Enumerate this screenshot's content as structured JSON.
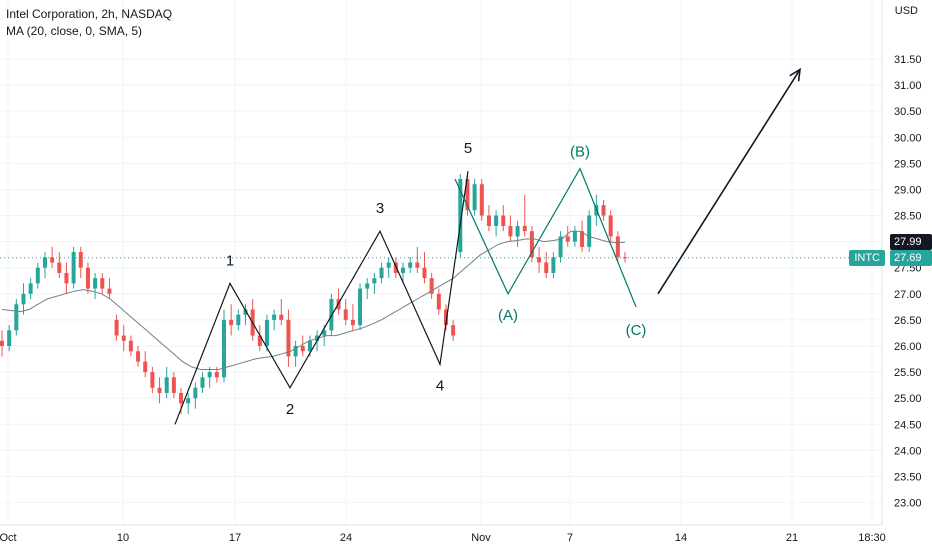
{
  "legend": {
    "title": "Intel Corporation, 2h, NASDAQ",
    "indicator": "MA (20, close, 0, SMA, 5)"
  },
  "axis": {
    "currency": "USD",
    "y_ticks": [
      "31.50",
      "31.00",
      "30.50",
      "30.00",
      "29.50",
      "29.00",
      "28.50",
      "28.00",
      "27.50",
      "27.00",
      "26.50",
      "26.00",
      "25.50",
      "25.00",
      "24.50",
      "24.00",
      "23.50",
      "23.00"
    ],
    "x_ticks": [
      "Oct",
      "10",
      "17",
      "24",
      "Nov",
      "7",
      "14",
      "21",
      "18:30"
    ]
  },
  "tags": {
    "symbol": "INTC",
    "last_price": "27.69",
    "ma_value": "27.99"
  },
  "colors": {
    "up": "#26a69a",
    "down": "#ef5350",
    "ma": "#787b86",
    "wave": "#131722",
    "corrective": "#00796b",
    "last_price_line": "#26a69a"
  },
  "chart_data": {
    "type": "candlestick",
    "title": "Intel Corporation, 2h, NASDAQ",
    "ylim": [
      22.8,
      32.4
    ],
    "x_labels": [
      "Oct",
      "10",
      "17",
      "24",
      "Nov",
      "7",
      "14",
      "21",
      "18:30"
    ],
    "ohlc": [
      [
        26.1,
        26.3,
        25.8,
        26.0
      ],
      [
        26.0,
        26.4,
        25.9,
        26.3
      ],
      [
        26.3,
        26.9,
        26.2,
        26.8
      ],
      [
        26.8,
        27.2,
        26.6,
        27.0
      ],
      [
        27.0,
        27.3,
        26.9,
        27.2
      ],
      [
        27.2,
        27.6,
        27.1,
        27.5
      ],
      [
        27.5,
        27.8,
        27.3,
        27.7
      ],
      [
        27.7,
        27.9,
        27.5,
        27.6
      ],
      [
        27.6,
        27.8,
        27.3,
        27.4
      ],
      [
        27.4,
        27.6,
        27.0,
        27.2
      ],
      [
        27.2,
        27.9,
        27.1,
        27.8
      ],
      [
        27.8,
        27.9,
        27.3,
        27.5
      ],
      [
        27.5,
        27.6,
        27.0,
        27.1
      ],
      [
        27.1,
        27.4,
        26.9,
        27.3
      ],
      [
        27.3,
        27.4,
        27.0,
        27.1
      ],
      [
        27.1,
        27.3,
        26.9,
        27.0
      ],
      [
        26.5,
        26.6,
        26.1,
        26.2
      ],
      [
        26.2,
        26.4,
        25.9,
        26.1
      ],
      [
        26.1,
        26.2,
        25.8,
        25.9
      ],
      [
        25.9,
        26.0,
        25.6,
        25.7
      ],
      [
        25.7,
        25.9,
        25.4,
        25.5
      ],
      [
        25.5,
        25.6,
        25.1,
        25.2
      ],
      [
        25.2,
        25.4,
        24.9,
        25.1
      ],
      [
        25.1,
        25.6,
        25.0,
        25.4
      ],
      [
        25.4,
        25.5,
        25.0,
        25.1
      ],
      [
        25.1,
        25.2,
        24.7,
        24.9
      ],
      [
        24.9,
        25.1,
        24.7,
        25.0
      ],
      [
        25.0,
        25.3,
        24.8,
        25.2
      ],
      [
        25.2,
        25.5,
        25.1,
        25.4
      ],
      [
        25.4,
        25.6,
        25.2,
        25.5
      ],
      [
        25.5,
        25.6,
        25.3,
        25.4
      ],
      [
        25.4,
        26.7,
        25.3,
        26.5
      ],
      [
        26.5,
        26.8,
        26.2,
        26.4
      ],
      [
        26.4,
        26.7,
        26.3,
        26.6
      ],
      [
        26.6,
        26.8,
        26.4,
        26.7
      ],
      [
        26.7,
        26.9,
        26.1,
        26.2
      ],
      [
        26.2,
        26.4,
        25.9,
        26.0
      ],
      [
        26.0,
        26.6,
        25.9,
        26.5
      ],
      [
        26.5,
        26.7,
        26.3,
        26.6
      ],
      [
        26.6,
        26.9,
        26.4,
        26.5
      ],
      [
        26.5,
        26.7,
        25.6,
        25.8
      ],
      [
        25.8,
        26.1,
        25.6,
        26.0
      ],
      [
        26.0,
        26.2,
        25.8,
        25.9
      ],
      [
        25.9,
        26.2,
        25.8,
        26.1
      ],
      [
        26.1,
        26.3,
        25.9,
        26.2
      ],
      [
        26.2,
        26.4,
        26.0,
        26.3
      ],
      [
        26.3,
        27.0,
        26.2,
        26.9
      ],
      [
        26.9,
        27.1,
        26.6,
        26.7
      ],
      [
        26.7,
        26.9,
        26.4,
        26.5
      ],
      [
        26.5,
        26.8,
        26.3,
        26.4
      ],
      [
        26.4,
        27.2,
        26.3,
        27.1
      ],
      [
        27.1,
        27.3,
        26.9,
        27.2
      ],
      [
        27.2,
        27.4,
        27.0,
        27.3
      ],
      [
        27.3,
        27.6,
        27.2,
        27.5
      ],
      [
        27.5,
        27.7,
        27.3,
        27.6
      ],
      [
        27.6,
        27.7,
        27.3,
        27.4
      ],
      [
        27.4,
        27.6,
        27.2,
        27.5
      ],
      [
        27.5,
        27.7,
        27.4,
        27.6
      ],
      [
        27.6,
        27.9,
        27.4,
        27.5
      ],
      [
        27.5,
        27.8,
        27.2,
        27.3
      ],
      [
        27.3,
        27.4,
        26.9,
        27.0
      ],
      [
        27.0,
        27.1,
        26.6,
        26.7
      ],
      [
        26.7,
        26.8,
        26.3,
        26.4
      ],
      [
        26.4,
        26.5,
        26.1,
        26.2
      ],
      [
        27.8,
        29.3,
        27.7,
        29.2
      ],
      [
        29.2,
        29.3,
        28.5,
        28.6
      ],
      [
        28.6,
        29.2,
        28.5,
        29.1
      ],
      [
        29.1,
        29.2,
        28.4,
        28.5
      ],
      [
        28.5,
        28.7,
        28.2,
        28.3
      ],
      [
        28.3,
        28.6,
        28.1,
        28.5
      ],
      [
        28.5,
        28.7,
        28.2,
        28.3
      ],
      [
        28.3,
        28.5,
        28.0,
        28.1
      ],
      [
        28.1,
        28.4,
        27.9,
        28.3
      ],
      [
        28.3,
        28.9,
        28.1,
        28.2
      ],
      [
        28.2,
        28.3,
        27.6,
        27.7
      ],
      [
        27.7,
        27.9,
        27.4,
        27.6
      ],
      [
        27.6,
        27.8,
        27.3,
        27.4
      ],
      [
        27.4,
        27.8,
        27.3,
        27.7
      ],
      [
        27.7,
        28.2,
        27.6,
        28.1
      ],
      [
        28.1,
        28.3,
        27.9,
        28.0
      ],
      [
        28.0,
        28.3,
        27.9,
        28.2
      ],
      [
        28.2,
        28.4,
        27.8,
        27.9
      ],
      [
        27.9,
        28.6,
        27.8,
        28.5
      ],
      [
        28.5,
        28.9,
        28.3,
        28.7
      ],
      [
        28.7,
        28.8,
        28.4,
        28.5
      ],
      [
        28.5,
        28.6,
        28.0,
        28.1
      ],
      [
        28.1,
        28.2,
        27.6,
        27.7
      ],
      [
        27.7,
        27.8,
        27.6,
        27.69
      ]
    ],
    "ma": [
      26.7,
      26.68,
      26.66,
      26.7,
      26.8,
      26.9,
      26.95,
      27.0,
      27.05,
      27.08,
      27.05,
      27.0,
      26.9,
      26.75,
      26.6,
      26.45,
      26.3,
      26.15,
      26.0,
      25.85,
      25.7,
      25.6,
      25.55,
      25.55,
      25.55,
      25.6,
      25.65,
      25.7,
      25.75,
      25.78,
      25.8,
      25.85,
      25.9,
      26.0,
      26.1,
      26.15,
      26.2,
      26.2,
      26.25,
      26.3,
      26.35,
      26.42,
      26.5,
      26.6,
      26.7,
      26.8,
      26.9,
      27.0,
      27.1,
      27.2,
      27.3,
      27.45,
      27.6,
      27.75,
      27.85,
      27.95,
      28.0,
      28.02,
      28.05,
      28.05,
      28.0,
      28.02,
      28.05,
      28.2,
      28.2,
      28.1,
      28.05,
      28.0,
      27.98,
      27.99
    ],
    "annotations": {
      "impulse": [
        [
          "",
          24.5
        ],
        [
          "1",
          27.2
        ],
        [
          "2",
          25.2
        ],
        [
          "3",
          28.2
        ],
        [
          "4",
          25.65
        ],
        [
          "5",
          29.35
        ]
      ],
      "corrective": [
        [
          "",
          29.2
        ],
        [
          "(A)",
          27.0
        ],
        [
          "(B)",
          29.4
        ],
        [
          "(C)",
          26.75
        ]
      ],
      "projection": [
        [
          27.0
        ],
        [
          31.3
        ]
      ]
    },
    "labels": [
      "1",
      "2",
      "3",
      "4",
      "5",
      "(A)",
      "(B)",
      "(C)"
    ]
  }
}
